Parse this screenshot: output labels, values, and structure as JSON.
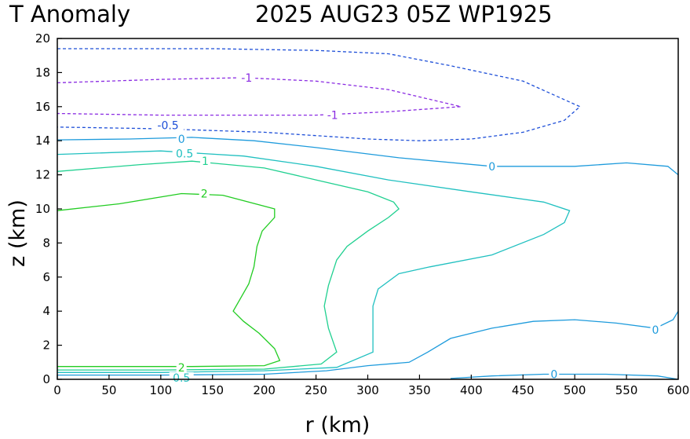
{
  "chart_data": {
    "type": "contour",
    "title_left": "T Anomaly",
    "title_right": "2025 AUG23 05Z   WP1925",
    "xlabel": "r (km)",
    "ylabel": "z (km)",
    "xlim": [
      0,
      600
    ],
    "ylim": [
      0,
      20
    ],
    "xticks": [
      0,
      50,
      100,
      150,
      200,
      250,
      300,
      350,
      400,
      450,
      500,
      550,
      600
    ],
    "yticks": [
      0,
      2,
      4,
      6,
      8,
      10,
      12,
      14,
      16,
      18,
      20
    ],
    "contours": [
      {
        "level": -1,
        "color": "#8a2be2",
        "dashed": true,
        "points": [
          [
            0,
            17.4
          ],
          [
            100,
            17.6
          ],
          [
            180,
            17.7
          ],
          [
            250,
            17.5
          ],
          [
            320,
            17.0
          ],
          [
            390,
            16.0
          ],
          [
            320,
            15.7
          ],
          [
            250,
            15.5
          ],
          [
            180,
            15.5
          ],
          [
            100,
            15.5
          ],
          [
            0,
            15.6
          ]
        ],
        "labels": [
          {
            "text": "-1",
            "x": 183,
            "y": 17.7
          },
          {
            "text": "-1",
            "x": 266,
            "y": 15.5
          }
        ]
      },
      {
        "level": -0.5,
        "color": "#1e4fd8",
        "dashed": true,
        "points": [
          [
            0,
            19.4
          ],
          [
            150,
            19.4
          ],
          [
            250,
            19.3
          ],
          [
            320,
            19.1
          ],
          [
            380,
            18.4
          ],
          [
            450,
            17.5
          ],
          [
            505,
            16.0
          ],
          [
            490,
            15.2
          ],
          [
            450,
            14.5
          ],
          [
            400,
            14.1
          ],
          [
            350,
            14.0
          ],
          [
            300,
            14.1
          ],
          [
            250,
            14.3
          ],
          [
            200,
            14.5
          ],
          [
            100,
            14.7
          ],
          [
            0,
            14.8
          ]
        ],
        "labels": [
          {
            "text": "-0.5",
            "x": 107,
            "y": 14.9
          }
        ]
      },
      {
        "level": 0,
        "color": "#1e9bdc",
        "dashed": false,
        "points": [
          [
            0,
            14.05
          ],
          [
            70,
            14.1
          ],
          [
            130,
            14.2
          ],
          [
            190,
            14.0
          ],
          [
            250,
            13.6
          ],
          [
            330,
            13.0
          ],
          [
            420,
            12.5
          ],
          [
            500,
            12.5
          ],
          [
            550,
            12.7
          ],
          [
            590,
            12.5
          ],
          [
            600,
            12.0
          ]
        ],
        "labels": [
          {
            "text": "0",
            "x": 120,
            "y": 14.1
          },
          {
            "text": "0",
            "x": 420,
            "y": 12.5
          }
        ]
      },
      {
        "level": 0,
        "color": "#1e9bdc",
        "dashed": false,
        "points": [
          [
            0,
            0.25
          ],
          [
            100,
            0.25
          ],
          [
            200,
            0.3
          ],
          [
            260,
            0.5
          ],
          [
            300,
            0.8
          ],
          [
            340,
            1.0
          ],
          [
            358,
            1.6
          ],
          [
            380,
            2.4
          ],
          [
            420,
            3.0
          ],
          [
            460,
            3.4
          ],
          [
            500,
            3.5
          ],
          [
            540,
            3.3
          ],
          [
            578,
            3.0
          ],
          [
            595,
            3.5
          ],
          [
            600,
            4.0
          ]
        ],
        "labels": [
          {
            "text": "0",
            "x": 578,
            "y": 2.9
          }
        ]
      },
      {
        "level": 0,
        "color": "#1e9bdc",
        "dashed": false,
        "points": [
          [
            380,
            0.05
          ],
          [
            420,
            0.2
          ],
          [
            470,
            0.3
          ],
          [
            530,
            0.3
          ],
          [
            580,
            0.2
          ],
          [
            600,
            0.0
          ]
        ],
        "labels": [
          {
            "text": "0",
            "x": 480,
            "y": 0.3
          }
        ]
      },
      {
        "level": 0.5,
        "color": "#20c0c0",
        "dashed": false,
        "points": [
          [
            0,
            13.2
          ],
          [
            100,
            13.4
          ],
          [
            180,
            13.1
          ],
          [
            250,
            12.5
          ],
          [
            320,
            11.7
          ],
          [
            400,
            11.0
          ],
          [
            470,
            10.4
          ],
          [
            495,
            9.9
          ],
          [
            490,
            9.2
          ],
          [
            470,
            8.5
          ],
          [
            420,
            7.3
          ],
          [
            360,
            6.6
          ],
          [
            330,
            6.2
          ],
          [
            310,
            5.3
          ],
          [
            305,
            4.3
          ],
          [
            305,
            3.0
          ],
          [
            305,
            1.6
          ],
          [
            270,
            0.7
          ],
          [
            200,
            0.5
          ],
          [
            100,
            0.4
          ],
          [
            0,
            0.4
          ]
        ],
        "labels": [
          {
            "text": "0.5",
            "x": 123,
            "y": 13.25
          },
          {
            "text": "0.5",
            "x": 120,
            "y": 0.1
          }
        ]
      },
      {
        "level": 1,
        "color": "#20d090",
        "dashed": false,
        "points": [
          [
            0,
            12.2
          ],
          [
            80,
            12.6
          ],
          [
            130,
            12.8
          ],
          [
            200,
            12.4
          ],
          [
            250,
            11.7
          ],
          [
            300,
            11.0
          ],
          [
            325,
            10.4
          ],
          [
            330,
            10.0
          ],
          [
            320,
            9.5
          ],
          [
            300,
            8.7
          ],
          [
            280,
            7.8
          ],
          [
            270,
            7.0
          ],
          [
            262,
            5.5
          ],
          [
            258,
            4.3
          ],
          [
            262,
            3.0
          ],
          [
            270,
            1.6
          ],
          [
            255,
            0.9
          ],
          [
            200,
            0.6
          ],
          [
            100,
            0.55
          ],
          [
            0,
            0.55
          ]
        ],
        "labels": [
          {
            "text": "1",
            "x": 143,
            "y": 12.8
          }
        ]
      },
      {
        "level": 2,
        "color": "#22cc22",
        "dashed": false,
        "points": [
          [
            0,
            9.9
          ],
          [
            60,
            10.3
          ],
          [
            120,
            10.9
          ],
          [
            160,
            10.8
          ],
          [
            210,
            10.0
          ],
          [
            210,
            9.5
          ],
          [
            198,
            8.7
          ],
          [
            193,
            7.8
          ],
          [
            190,
            6.6
          ],
          [
            185,
            5.6
          ],
          [
            170,
            4.0
          ],
          [
            180,
            3.4
          ],
          [
            195,
            2.7
          ],
          [
            210,
            1.8
          ],
          [
            215,
            1.1
          ],
          [
            200,
            0.8
          ],
          [
            130,
            0.75
          ],
          [
            0,
            0.75
          ]
        ],
        "labels": [
          {
            "text": "2",
            "x": 142,
            "y": 10.9
          },
          {
            "text": "2",
            "x": 120,
            "y": 0.7
          }
        ]
      }
    ]
  }
}
